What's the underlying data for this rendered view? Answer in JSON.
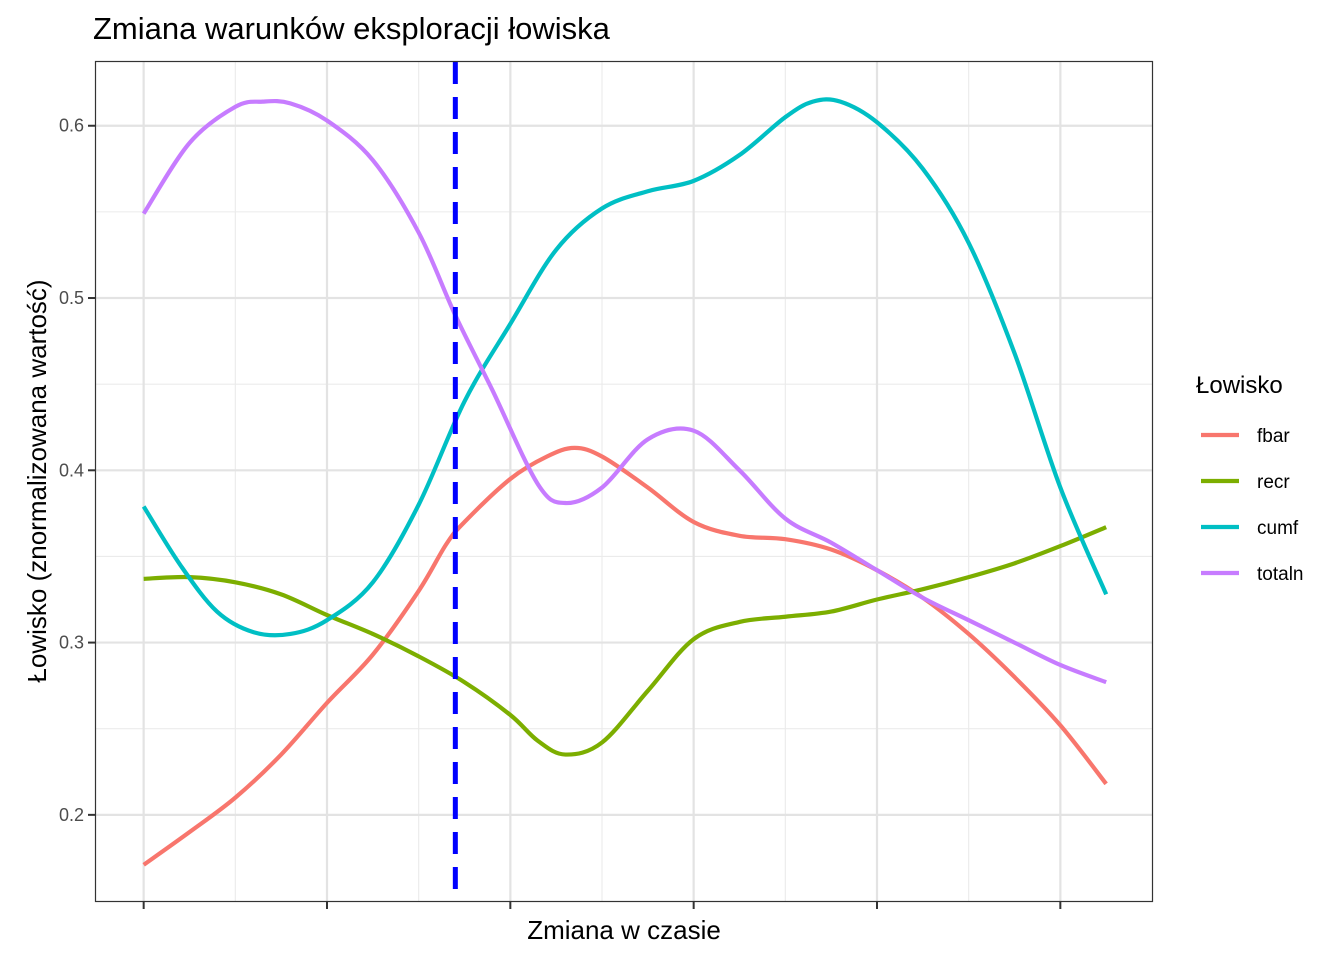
{
  "chart_data": {
    "type": "line",
    "title": "Zmiana warunków eksploracji łowiska",
    "xlabel": "Zmiana w czasie",
    "ylabel": "Łowisko (znormalizowana wartość)",
    "x_tick_labels_shown": false,
    "xlim": [
      -0.52,
      11.0
    ],
    "ylim": [
      0.15,
      0.637
    ],
    "y_ticks": [
      0.2,
      0.3,
      0.4,
      0.5,
      0.6
    ],
    "y_tick_labels": [
      "0.2",
      "0.3",
      "0.4",
      "0.5",
      "0.6"
    ],
    "x_major_ticks": [
      0,
      2,
      4,
      6,
      8,
      10
    ],
    "grid": true,
    "vline": {
      "x": 3.4,
      "color": "#0000ff",
      "style": "dashed"
    },
    "legend": {
      "title": "Łowisko",
      "position": "right"
    },
    "series": [
      {
        "name": "fbar",
        "color": "#F8766D",
        "x": [
          0,
          0.5,
          1,
          1.5,
          2,
          2.5,
          3,
          3.3,
          3.5,
          4,
          4.4,
          4.7,
          5,
          5.5,
          6,
          6.5,
          7,
          7.5,
          8,
          8.5,
          9,
          9.5,
          10,
          10.5
        ],
        "y": [
          0.171,
          0.19,
          0.21,
          0.235,
          0.265,
          0.293,
          0.33,
          0.357,
          0.37,
          0.395,
          0.408,
          0.413,
          0.408,
          0.39,
          0.37,
          0.362,
          0.36,
          0.354,
          0.342,
          0.326,
          0.305,
          0.28,
          0.252,
          0.218
        ]
      },
      {
        "name": "recr",
        "color": "#7CAE00",
        "x": [
          0,
          0.5,
          1,
          1.5,
          2,
          2.5,
          3,
          3.5,
          4,
          4.3,
          4.6,
          5,
          5.5,
          6,
          6.5,
          7,
          7.5,
          8,
          8.5,
          9,
          9.5,
          10,
          10.5
        ],
        "y": [
          0.337,
          0.338,
          0.335,
          0.328,
          0.316,
          0.305,
          0.292,
          0.277,
          0.258,
          0.243,
          0.235,
          0.242,
          0.272,
          0.302,
          0.312,
          0.315,
          0.318,
          0.325,
          0.331,
          0.338,
          0.346,
          0.356,
          0.367
        ]
      },
      {
        "name": "cumf",
        "color": "#00BFC4",
        "x": [
          0,
          0.4,
          0.8,
          1.2,
          1.6,
          2,
          2.5,
          3,
          3.5,
          4,
          4.5,
          5,
          5.5,
          6,
          6.5,
          7,
          7.3,
          7.6,
          8,
          8.5,
          9,
          9.5,
          10,
          10.5
        ],
        "y": [
          0.379,
          0.345,
          0.318,
          0.306,
          0.305,
          0.313,
          0.335,
          0.38,
          0.44,
          0.485,
          0.528,
          0.552,
          0.562,
          0.568,
          0.583,
          0.605,
          0.614,
          0.614,
          0.602,
          0.575,
          0.532,
          0.468,
          0.39,
          0.328
        ]
      },
      {
        "name": "totaln",
        "color": "#C77CFF",
        "x": [
          0,
          0.5,
          1,
          1.3,
          1.6,
          2,
          2.5,
          3,
          3.4,
          3.8,
          4.3,
          4.6,
          5,
          5.5,
          6,
          6.5,
          7,
          7.5,
          8,
          8.5,
          9,
          9.5,
          10,
          10.5
        ],
        "y": [
          0.549,
          0.59,
          0.611,
          0.614,
          0.613,
          0.603,
          0.58,
          0.538,
          0.49,
          0.447,
          0.392,
          0.381,
          0.39,
          0.418,
          0.423,
          0.4,
          0.372,
          0.358,
          0.342,
          0.326,
          0.313,
          0.3,
          0.287,
          0.277
        ]
      }
    ]
  }
}
